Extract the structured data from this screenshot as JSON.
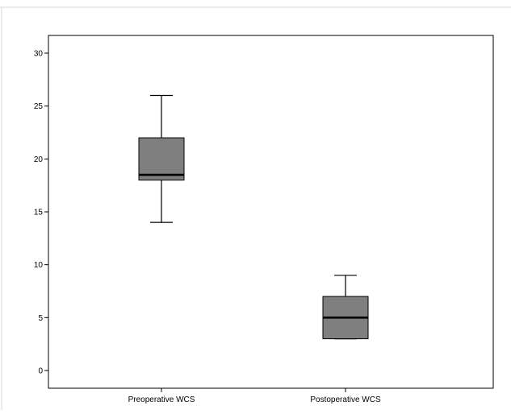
{
  "chart_data": {
    "type": "boxplot",
    "title": "",
    "xlabel": "",
    "ylabel": "",
    "ylim": [
      0,
      30
    ],
    "yticks": [
      0,
      5,
      10,
      15,
      20,
      25,
      30
    ],
    "grid": false,
    "legend": "none",
    "box_color": "#7f7f7f",
    "line_color": "#000000",
    "categories": [
      "Preoperative WCS",
      "Postoperative WCS"
    ],
    "boxes": [
      {
        "category": "Preoperative WCS",
        "whisker_low": 14,
        "q1": 18,
        "median": 18.5,
        "q3": 22,
        "whisker_high": 26
      },
      {
        "category": "Postoperative WCS",
        "whisker_low": 3,
        "q1": 3,
        "median": 5,
        "q3": 7,
        "whisker_high": 9
      }
    ]
  }
}
